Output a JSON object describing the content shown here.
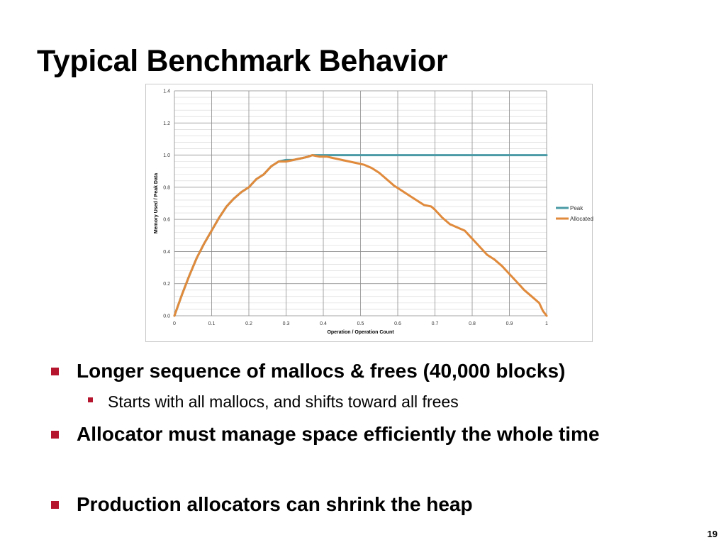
{
  "slide": {
    "title": "Typical Benchmark Behavior",
    "page_number": "19"
  },
  "bullets": [
    {
      "level": 1,
      "text": "Longer sequence of mallocs & frees (40,000 blocks)"
    },
    {
      "level": 2,
      "text": "Starts with all mallocs, and shifts toward all frees"
    },
    {
      "level": 1,
      "text": "Allocator must manage space efficiently the whole time"
    },
    {
      "level": 1,
      "text": "Production allocators can shrink the heap"
    }
  ],
  "colors": {
    "bullet_marker": "#b5162e",
    "peak_series": "#4a9aa5",
    "allocated_series": "#e08a3c"
  },
  "chart_data": {
    "type": "line",
    "title": "",
    "xlabel": "Operation / Operation Count",
    "ylabel": "Memory Used / Peak Data",
    "xlim": [
      0,
      1
    ],
    "ylim": [
      0,
      1.4
    ],
    "x_ticks": [
      "0",
      "0.1",
      "0.2",
      "0.3",
      "0.4",
      "0.5",
      "0.6",
      "0.7",
      "0.8",
      "0.9",
      "1"
    ],
    "y_ticks": [
      "0.0",
      "0.2",
      "0.4",
      "0.6",
      "0.8",
      "1.0",
      "1.2",
      "1.4"
    ],
    "grid": true,
    "legend_position": "right",
    "series": [
      {
        "name": "Peak",
        "color": "#4a9aa5",
        "points": [
          [
            0,
            0
          ],
          [
            0.02,
            0.13
          ],
          [
            0.04,
            0.25
          ],
          [
            0.06,
            0.36
          ],
          [
            0.08,
            0.45
          ],
          [
            0.1,
            0.53
          ],
          [
            0.12,
            0.61
          ],
          [
            0.14,
            0.68
          ],
          [
            0.16,
            0.73
          ],
          [
            0.18,
            0.77
          ],
          [
            0.2,
            0.8
          ],
          [
            0.22,
            0.85
          ],
          [
            0.24,
            0.88
          ],
          [
            0.26,
            0.93
          ],
          [
            0.28,
            0.96
          ],
          [
            0.3,
            0.97
          ],
          [
            0.32,
            0.97
          ],
          [
            0.34,
            0.98
          ],
          [
            0.36,
            0.99
          ],
          [
            0.37,
            1.0
          ],
          [
            0.4,
            1.0
          ],
          [
            0.5,
            1.0
          ],
          [
            0.6,
            1.0
          ],
          [
            0.7,
            1.0
          ],
          [
            0.8,
            1.0
          ],
          [
            0.9,
            1.0
          ],
          [
            1.0,
            1.0
          ]
        ]
      },
      {
        "name": "Allocated",
        "color": "#e08a3c",
        "points": [
          [
            0,
            0
          ],
          [
            0.02,
            0.13
          ],
          [
            0.04,
            0.25
          ],
          [
            0.06,
            0.36
          ],
          [
            0.08,
            0.45
          ],
          [
            0.1,
            0.53
          ],
          [
            0.12,
            0.61
          ],
          [
            0.14,
            0.68
          ],
          [
            0.16,
            0.73
          ],
          [
            0.18,
            0.77
          ],
          [
            0.2,
            0.8
          ],
          [
            0.22,
            0.85
          ],
          [
            0.24,
            0.88
          ],
          [
            0.26,
            0.93
          ],
          [
            0.28,
            0.96
          ],
          [
            0.3,
            0.96
          ],
          [
            0.32,
            0.97
          ],
          [
            0.34,
            0.98
          ],
          [
            0.36,
            0.99
          ],
          [
            0.37,
            1.0
          ],
          [
            0.39,
            0.99
          ],
          [
            0.41,
            0.99
          ],
          [
            0.43,
            0.98
          ],
          [
            0.45,
            0.97
          ],
          [
            0.47,
            0.96
          ],
          [
            0.49,
            0.95
          ],
          [
            0.51,
            0.94
          ],
          [
            0.53,
            0.92
          ],
          [
            0.55,
            0.89
          ],
          [
            0.57,
            0.85
          ],
          [
            0.59,
            0.81
          ],
          [
            0.61,
            0.78
          ],
          [
            0.63,
            0.75
          ],
          [
            0.65,
            0.72
          ],
          [
            0.67,
            0.69
          ],
          [
            0.69,
            0.68
          ],
          [
            0.7,
            0.66
          ],
          [
            0.72,
            0.61
          ],
          [
            0.74,
            0.57
          ],
          [
            0.76,
            0.55
          ],
          [
            0.78,
            0.53
          ],
          [
            0.8,
            0.48
          ],
          [
            0.82,
            0.43
          ],
          [
            0.84,
            0.38
          ],
          [
            0.86,
            0.35
          ],
          [
            0.88,
            0.31
          ],
          [
            0.9,
            0.26
          ],
          [
            0.92,
            0.21
          ],
          [
            0.94,
            0.16
          ],
          [
            0.96,
            0.12
          ],
          [
            0.98,
            0.08
          ],
          [
            0.99,
            0.03
          ],
          [
            1.0,
            0.0
          ]
        ]
      }
    ]
  }
}
